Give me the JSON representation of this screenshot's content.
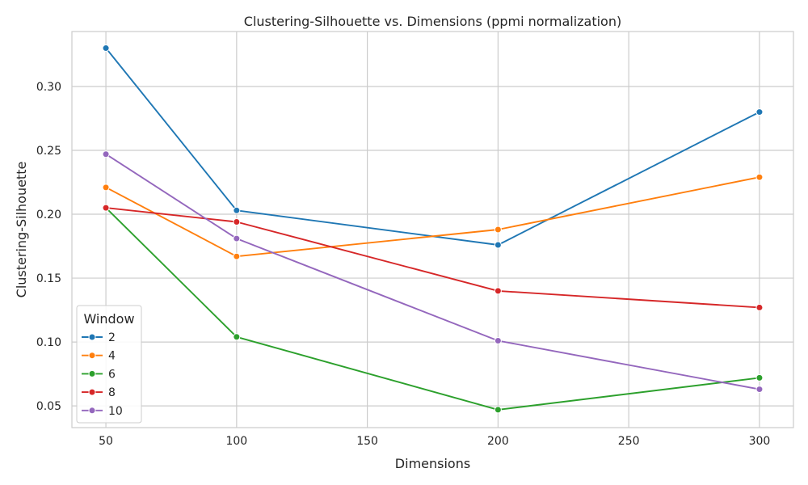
{
  "chart_data": {
    "type": "line",
    "title": "Clustering-Silhouette vs. Dimensions (ppmi normalization)",
    "xlabel": "Dimensions",
    "ylabel": "Clustering-Silhouette",
    "x": [
      50,
      100,
      200,
      300
    ],
    "xlim": [
      37,
      313
    ],
    "ylim": [
      0.033,
      0.343
    ],
    "xticks": [
      50,
      100,
      150,
      200,
      250,
      300
    ],
    "yticks": [
      0.05,
      0.1,
      0.15,
      0.2,
      0.25,
      0.3
    ],
    "ytick_labels": [
      "0.05",
      "0.10",
      "0.15",
      "0.20",
      "0.25",
      "0.30"
    ],
    "grid": true,
    "legend": {
      "title": "Window",
      "placement": "lower-left"
    },
    "series": [
      {
        "name": "2",
        "color": "#1f77b4",
        "values": [
          0.33,
          0.203,
          0.176,
          0.28
        ]
      },
      {
        "name": "4",
        "color": "#ff7f0e",
        "values": [
          0.221,
          0.167,
          0.188,
          0.229
        ]
      },
      {
        "name": "6",
        "color": "#2ca02c",
        "values": [
          0.205,
          0.104,
          0.047,
          0.072
        ]
      },
      {
        "name": "8",
        "color": "#d62728",
        "values": [
          0.205,
          0.194,
          0.14,
          0.127
        ]
      },
      {
        "name": "10",
        "color": "#9467bd",
        "values": [
          0.247,
          0.181,
          0.101,
          0.063
        ]
      }
    ]
  }
}
